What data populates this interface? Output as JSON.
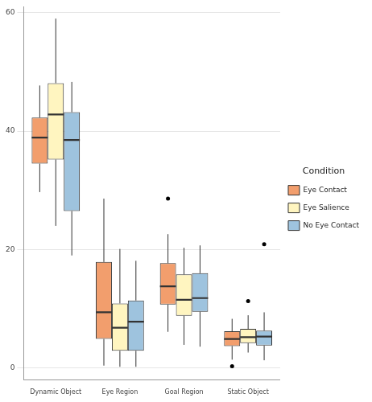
{
  "chart_data": {
    "type": "boxplot",
    "categories": [
      "Dynamic Object",
      "Eye Region",
      "Goal Region",
      "Static Object"
    ],
    "legend_title": "Condition",
    "legend": "right",
    "grid": true,
    "ylim": [
      -2,
      61
    ],
    "yticks": [
      0,
      20,
      40,
      60
    ],
    "series": [
      {
        "name": "Eye Contact",
        "color": "#F29E6D",
        "values": [
          {
            "min": 29.7,
            "q1": 34.5,
            "median": 38.9,
            "q3": 42.3,
            "max": 47.7,
            "outliers": []
          },
          {
            "min": 0.4,
            "q1": 4.9,
            "median": 9.4,
            "q3": 17.9,
            "max": 28.6,
            "outliers": []
          },
          {
            "min": 6.1,
            "q1": 10.7,
            "median": 13.8,
            "q3": 17.7,
            "max": 22.6,
            "outliers": [
              28.6
            ]
          },
          {
            "min": 1.4,
            "q1": 3.7,
            "median": 4.9,
            "q3": 6.2,
            "max": 8.3,
            "outliers": [
              0.3
            ]
          }
        ]
      },
      {
        "name": "Eye Salience",
        "color": "#FFF5C0",
        "values": [
          {
            "min": 24.0,
            "q1": 35.2,
            "median": 42.8,
            "q3": 48.1,
            "max": 59.0,
            "outliers": []
          },
          {
            "min": 0.2,
            "q1": 2.9,
            "median": 6.8,
            "q3": 10.9,
            "max": 20.1,
            "outliers": []
          },
          {
            "min": 3.9,
            "q1": 8.8,
            "median": 11.5,
            "q3": 15.8,
            "max": 20.3,
            "outliers": []
          },
          {
            "min": 2.6,
            "q1": 4.2,
            "median": 5.2,
            "q3": 6.6,
            "max": 8.9,
            "outliers": [
              11.3
            ]
          }
        ]
      },
      {
        "name": "No Eye Contact",
        "color": "#9EC3DE",
        "values": [
          {
            "min": 19.0,
            "q1": 26.5,
            "median": 38.5,
            "q3": 43.2,
            "max": 48.3,
            "outliers": []
          },
          {
            "min": 0.2,
            "q1": 2.9,
            "median": 7.8,
            "q3": 11.4,
            "max": 18.1,
            "outliers": []
          },
          {
            "min": 3.6,
            "q1": 9.5,
            "median": 11.8,
            "q3": 16.0,
            "max": 20.7,
            "outliers": []
          },
          {
            "min": 1.3,
            "q1": 3.8,
            "median": 5.3,
            "q3": 6.3,
            "max": 9.4,
            "outliers": [
              20.9
            ]
          }
        ]
      }
    ]
  }
}
